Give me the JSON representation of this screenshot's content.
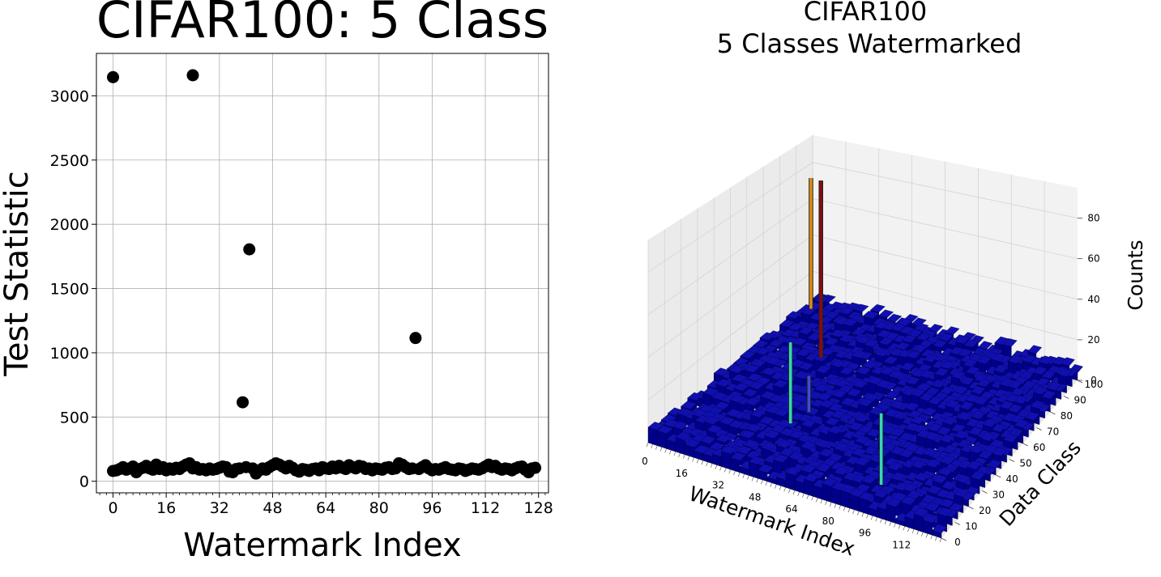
{
  "chart_data": [
    {
      "type": "scatter",
      "title": "CIFAR100: 5 Class",
      "xlabel": "Watermark Index",
      "ylabel": "Test Statistic",
      "xlim": [
        -5,
        131
      ],
      "ylim": [
        -90,
        3330
      ],
      "xticks": [
        0,
        16,
        32,
        48,
        64,
        80,
        96,
        112,
        128
      ],
      "yticks": [
        0,
        500,
        1000,
        1500,
        2000,
        2500,
        3000
      ],
      "grid": true,
      "marker_color": "#000000",
      "outliers": [
        {
          "x": 0,
          "y": 3145
        },
        {
          "x": 24,
          "y": 3160
        },
        {
          "x": 39,
          "y": 615
        },
        {
          "x": 41,
          "y": 1805
        },
        {
          "x": 91,
          "y": 1115
        }
      ],
      "baseline": [
        {
          "x": 0,
          "y": 80
        },
        {
          "x": 1,
          "y": 85
        },
        {
          "x": 2,
          "y": 95
        },
        {
          "x": 3,
          "y": 110
        },
        {
          "x": 4,
          "y": 90
        },
        {
          "x": 5,
          "y": 100
        },
        {
          "x": 6,
          "y": 115
        },
        {
          "x": 7,
          "y": 70
        },
        {
          "x": 8,
          "y": 95
        },
        {
          "x": 9,
          "y": 105
        },
        {
          "x": 10,
          "y": 120
        },
        {
          "x": 11,
          "y": 100
        },
        {
          "x": 12,
          "y": 90
        },
        {
          "x": 13,
          "y": 130
        },
        {
          "x": 14,
          "y": 95
        },
        {
          "x": 15,
          "y": 110
        },
        {
          "x": 16,
          "y": 85
        },
        {
          "x": 17,
          "y": 100
        },
        {
          "x": 18,
          "y": 90
        },
        {
          "x": 19,
          "y": 105
        },
        {
          "x": 20,
          "y": 95
        },
        {
          "x": 21,
          "y": 115
        },
        {
          "x": 22,
          "y": 130
        },
        {
          "x": 23,
          "y": 140
        },
        {
          "x": 24,
          "y": 100
        },
        {
          "x": 25,
          "y": 110
        },
        {
          "x": 26,
          "y": 90
        },
        {
          "x": 27,
          "y": 95
        },
        {
          "x": 28,
          "y": 85
        },
        {
          "x": 29,
          "y": 100
        },
        {
          "x": 30,
          "y": 90
        },
        {
          "x": 31,
          "y": 95
        },
        {
          "x": 32,
          "y": 105
        },
        {
          "x": 33,
          "y": 115
        },
        {
          "x": 34,
          "y": 110
        },
        {
          "x": 35,
          "y": 75
        },
        {
          "x": 36,
          "y": 70
        },
        {
          "x": 37,
          "y": 95
        },
        {
          "x": 38,
          "y": 100
        },
        {
          "x": 40,
          "y": 110
        },
        {
          "x": 42,
          "y": 100
        },
        {
          "x": 43,
          "y": 60
        },
        {
          "x": 44,
          "y": 85
        },
        {
          "x": 45,
          "y": 100
        },
        {
          "x": 46,
          "y": 90
        },
        {
          "x": 47,
          "y": 110
        },
        {
          "x": 48,
          "y": 125
        },
        {
          "x": 49,
          "y": 140
        },
        {
          "x": 50,
          "y": 130
        },
        {
          "x": 51,
          "y": 115
        },
        {
          "x": 52,
          "y": 100
        },
        {
          "x": 53,
          "y": 120
        },
        {
          "x": 54,
          "y": 105
        },
        {
          "x": 55,
          "y": 85
        },
        {
          "x": 56,
          "y": 75
        },
        {
          "x": 57,
          "y": 95
        },
        {
          "x": 58,
          "y": 90
        },
        {
          "x": 59,
          "y": 80
        },
        {
          "x": 60,
          "y": 95
        },
        {
          "x": 61,
          "y": 100
        },
        {
          "x": 62,
          "y": 85
        },
        {
          "x": 63,
          "y": 110
        },
        {
          "x": 64,
          "y": 100
        },
        {
          "x": 65,
          "y": 95
        },
        {
          "x": 66,
          "y": 115
        },
        {
          "x": 67,
          "y": 100
        },
        {
          "x": 68,
          "y": 120
        },
        {
          "x": 69,
          "y": 105
        },
        {
          "x": 70,
          "y": 95
        },
        {
          "x": 71,
          "y": 125
        },
        {
          "x": 72,
          "y": 110
        },
        {
          "x": 73,
          "y": 100
        },
        {
          "x": 74,
          "y": 120
        },
        {
          "x": 75,
          "y": 115
        },
        {
          "x": 76,
          "y": 95
        },
        {
          "x": 77,
          "y": 100
        },
        {
          "x": 78,
          "y": 85
        },
        {
          "x": 79,
          "y": 100
        },
        {
          "x": 80,
          "y": 95
        },
        {
          "x": 81,
          "y": 90
        },
        {
          "x": 82,
          "y": 105
        },
        {
          "x": 83,
          "y": 110
        },
        {
          "x": 84,
          "y": 95
        },
        {
          "x": 85,
          "y": 100
        },
        {
          "x": 86,
          "y": 140
        },
        {
          "x": 87,
          "y": 130
        },
        {
          "x": 88,
          "y": 110
        },
        {
          "x": 89,
          "y": 95
        },
        {
          "x": 90,
          "y": 100
        },
        {
          "x": 92,
          "y": 95
        },
        {
          "x": 93,
          "y": 110
        },
        {
          "x": 94,
          "y": 125
        },
        {
          "x": 95,
          "y": 100
        },
        {
          "x": 96,
          "y": 85
        },
        {
          "x": 97,
          "y": 95
        },
        {
          "x": 98,
          "y": 90
        },
        {
          "x": 99,
          "y": 100
        },
        {
          "x": 100,
          "y": 110
        },
        {
          "x": 101,
          "y": 95
        },
        {
          "x": 102,
          "y": 90
        },
        {
          "x": 103,
          "y": 85
        },
        {
          "x": 104,
          "y": 100
        },
        {
          "x": 105,
          "y": 95
        },
        {
          "x": 106,
          "y": 80
        },
        {
          "x": 107,
          "y": 90
        },
        {
          "x": 108,
          "y": 100
        },
        {
          "x": 109,
          "y": 95
        },
        {
          "x": 110,
          "y": 90
        },
        {
          "x": 111,
          "y": 100
        },
        {
          "x": 112,
          "y": 115
        },
        {
          "x": 113,
          "y": 130
        },
        {
          "x": 114,
          "y": 110
        },
        {
          "x": 115,
          "y": 120
        },
        {
          "x": 116,
          "y": 100
        },
        {
          "x": 117,
          "y": 90
        },
        {
          "x": 118,
          "y": 100
        },
        {
          "x": 119,
          "y": 95
        },
        {
          "x": 120,
          "y": 85
        },
        {
          "x": 121,
          "y": 100
        },
        {
          "x": 122,
          "y": 110
        },
        {
          "x": 123,
          "y": 115
        },
        {
          "x": 124,
          "y": 90
        },
        {
          "x": 125,
          "y": 70
        },
        {
          "x": 126,
          "y": 100
        },
        {
          "x": 127,
          "y": 105
        }
      ]
    },
    {
      "type": "bar3d",
      "title": [
        "CIFAR100",
        "5 Classes Watermarked"
      ],
      "xlabel": "Watermark Index",
      "ylabel": "Data Class",
      "zlabel": "Counts",
      "xticks": [
        0,
        16,
        32,
        48,
        64,
        80,
        96,
        112
      ],
      "yticks": [
        0,
        10,
        20,
        30,
        40,
        50,
        60,
        70,
        80,
        90,
        100
      ],
      "zticks": [
        0,
        20,
        40,
        60,
        80
      ],
      "xlim": [
        0,
        128
      ],
      "ylim": [
        0,
        100
      ],
      "zlim": [
        0,
        95
      ],
      "base_color": "#00008b",
      "base_counts_range": [
        2,
        8
      ],
      "peaks": [
        {
          "x": 0,
          "y": 99,
          "count": 72,
          "color": "#e08c10"
        },
        {
          "x": 24,
          "y": 74,
          "count": 92,
          "color": "#8b0a0a"
        },
        {
          "x": 41,
          "y": 43,
          "count": 18,
          "color": "#3a4fd0"
        },
        {
          "x": 39,
          "y": 34,
          "count": 40,
          "color": "#35d8b8"
        },
        {
          "x": 91,
          "y": 17,
          "count": 35,
          "color": "#35d8b8"
        }
      ]
    }
  ]
}
